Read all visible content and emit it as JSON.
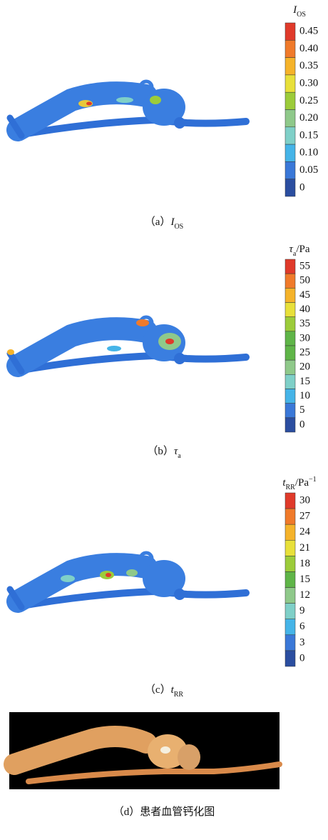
{
  "panels": [
    {
      "colorbar": {
        "title": {
          "main": "I",
          "sub": "OS"
        },
        "ticks": [
          "0.45",
          "0.40",
          "0.35",
          "0.30",
          "0.25",
          "0.20",
          "0.15",
          "0.10",
          "0.05",
          "0"
        ]
      },
      "caption": {
        "label": "（a）",
        "main": "I",
        "sub": "OS"
      }
    },
    {
      "colorbar": {
        "title": {
          "main": "τ",
          "sub": "a",
          "suffix": "/Pa"
        },
        "ticks": [
          "55",
          "50",
          "45",
          "40",
          "35",
          "30",
          "25",
          "20",
          "15",
          "10",
          "5",
          "0"
        ]
      },
      "caption": {
        "label": "（b）",
        "main": "τ",
        "sub": "a"
      }
    },
    {
      "colorbar": {
        "title": {
          "main": "t",
          "sub": "RR",
          "suffix": "/Pa",
          "sup": "−1"
        },
        "ticks": [
          "30",
          "27",
          "24",
          "21",
          "18",
          "15",
          "12",
          "9",
          "6",
          "3",
          "0"
        ]
      },
      "caption": {
        "label": "（c）",
        "main": "t",
        "sub": "RR"
      }
    },
    {
      "caption": {
        "label": "（d）",
        "text": "患者血管钙化图"
      }
    }
  ]
}
